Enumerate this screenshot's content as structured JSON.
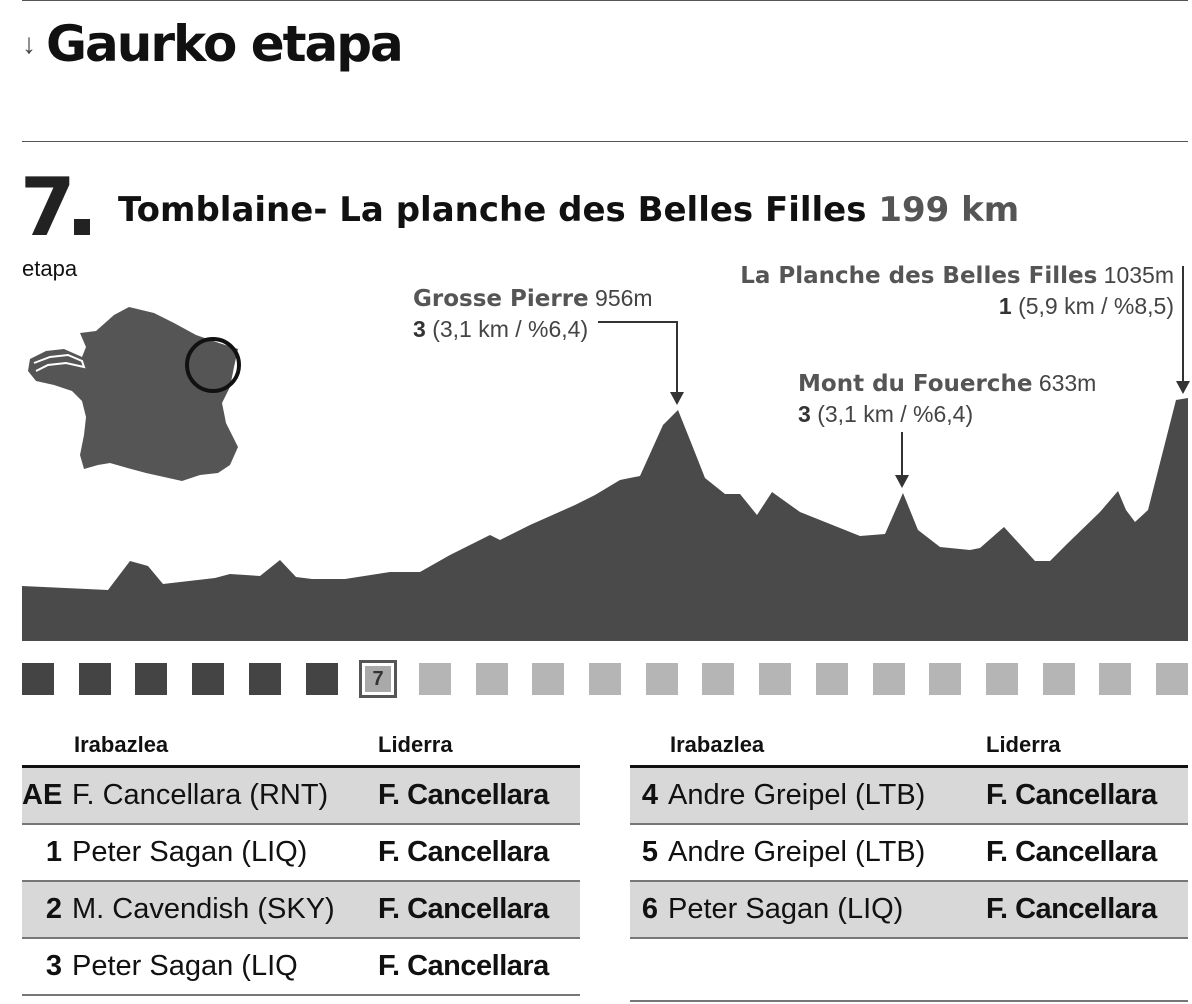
{
  "section": {
    "title": "Gaurko etapa",
    "icon": "arrow-down-icon"
  },
  "stage": {
    "number": "7",
    "label": "etapa",
    "route": "Tomblaine- La planche des Belles Filles",
    "distance": "199 km"
  },
  "climbs": [
    {
      "name": "Grosse Pierre",
      "altitude": "956m",
      "category": "3",
      "detail": "(3,1 km / %6,4)"
    },
    {
      "name": "Mont du Fouerche",
      "altitude": "633m",
      "category": "3",
      "detail": "(3,1 km / %6,4)"
    },
    {
      "name": "La Planche des Belles Filles",
      "altitude": "1035m",
      "category": "1",
      "detail": "(5,9 km / %8,5)"
    }
  ],
  "colors": {
    "profile": "#4a4a4a",
    "past_stage": "#444444",
    "future_stage": "#b5b5b5",
    "row_shade": "#d8d8d8",
    "map": "#555555"
  },
  "stage_strip": {
    "total": 21,
    "current": 7,
    "current_label": "7"
  },
  "results_left": {
    "header_winner": "Irabazlea",
    "header_leader": "Liderra",
    "rows": [
      {
        "num": "AE",
        "winner": "F. Cancellara (RNT)",
        "leader": "F. Cancellara",
        "shaded": true
      },
      {
        "num": "1",
        "winner": "Peter Sagan (LIQ)",
        "leader": "F. Cancellara",
        "shaded": false
      },
      {
        "num": "2",
        "winner": "M. Cavendish (SKY)",
        "leader": "F. Cancellara",
        "shaded": true
      },
      {
        "num": "3",
        "winner": "Peter Sagan (LIQ",
        "leader": "F. Cancellara",
        "shaded": false
      }
    ]
  },
  "results_right": {
    "header_winner": "Irabazlea",
    "header_leader": "Liderra",
    "rows": [
      {
        "num": "4",
        "winner": "Andre Greipel (LTB)",
        "leader": "F. Cancellara",
        "shaded": true
      },
      {
        "num": "5",
        "winner": "Andre Greipel (LTB)",
        "leader": "F. Cancellara",
        "shaded": false
      },
      {
        "num": "6",
        "winner": "Peter Sagan (LIQ)",
        "leader": "F. Cancellara",
        "shaded": true
      }
    ]
  }
}
